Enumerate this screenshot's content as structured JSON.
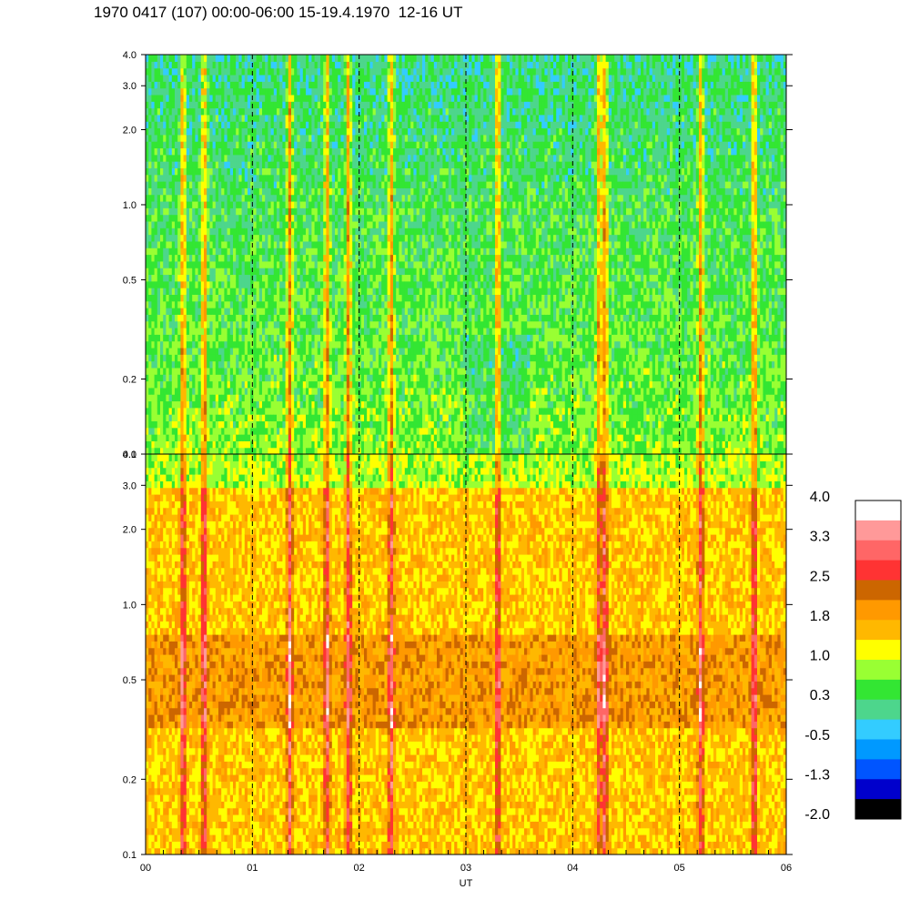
{
  "title": "1970 0417 (107) 00:00-06:00 15-19.4.1970  12-16 UT",
  "chart_data": {
    "type": "heatmap",
    "x_axis": {
      "label": "UT",
      "range": [
        0,
        6
      ],
      "tick_labels": [
        "00",
        "01",
        "02",
        "03",
        "04",
        "05",
        "06"
      ],
      "dashed_lines_at": [
        1,
        2,
        3,
        4,
        5
      ]
    },
    "panels": [
      {
        "name": "upper",
        "y_scale": "log",
        "y_range": [
          0.1,
          4.0
        ],
        "y_tick_values": [
          0.1,
          0.2,
          0.5,
          1.0,
          2.0,
          3.0,
          4.0
        ],
        "y_tick_labels": [
          "0.1",
          "0.2",
          "0.5",
          "1.0",
          "2.0",
          "3.0",
          "4.0"
        ],
        "dominant_level": "0.3 to 1.0 (green/yellow)"
      },
      {
        "name": "lower",
        "y_scale": "log",
        "y_range": [
          0.1,
          4.0
        ],
        "y_tick_values": [
          0.1,
          0.2,
          0.5,
          1.0,
          2.0,
          3.0,
          4.0
        ],
        "y_tick_labels": [
          "0.1",
          "0.2",
          "0.5",
          "1.0",
          "2.0",
          "3.0",
          "4.0"
        ],
        "dominant_level": "1.0 to 2.5 (orange)"
      }
    ],
    "colorbar": {
      "range": [
        -2.0,
        4.0
      ],
      "labels": [
        "4.0",
        "3.3",
        "2.5",
        "1.8",
        "1.0",
        "0.3",
        "-0.5",
        "-1.3",
        "-2.0"
      ],
      "colors_top_to_bottom": [
        "#ffffff",
        "#ff9999",
        "#ff6666",
        "#ff3333",
        "#cc6600",
        "#ff9900",
        "#ffb800",
        "#ffff00",
        "#99ff33",
        "#33e633",
        "#4dd68c",
        "#33ccff",
        "#0099ff",
        "#0055ff",
        "#0000cc",
        "#000000"
      ]
    }
  }
}
